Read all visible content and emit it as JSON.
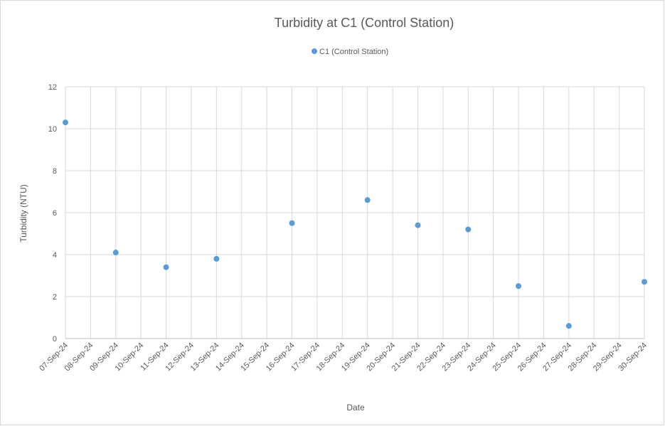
{
  "chart_data": {
    "type": "scatter",
    "title": "Turbidity at C1 (Control Station)",
    "xlabel": "Date",
    "ylabel": "Turbidity (NTU)",
    "series": [
      {
        "name": "C1 (Control Station)",
        "color": "#5b9bd5",
        "x": [
          "2024-09-07",
          "2024-09-09",
          "2024-09-11",
          "2024-09-13",
          "2024-09-16",
          "2024-09-19",
          "2024-09-21",
          "2024-09-23",
          "2024-09-25",
          "2024-09-27",
          "2024-09-30"
        ],
        "values": [
          10.3,
          4.1,
          3.4,
          3.8,
          5.5,
          6.6,
          5.4,
          5.2,
          2.5,
          0.6,
          2.7
        ]
      }
    ],
    "xlim": [
      "2024-09-07",
      "2024-09-30"
    ],
    "xticks": [
      {
        "value": "2024-09-07",
        "label": "07-Sep-24"
      },
      {
        "value": "2024-09-08",
        "label": "08-Sep-24"
      },
      {
        "value": "2024-09-09",
        "label": "09-Sep-24"
      },
      {
        "value": "2024-09-10",
        "label": "10-Sep-24"
      },
      {
        "value": "2024-09-11",
        "label": "11-Sep-24"
      },
      {
        "value": "2024-09-12",
        "label": "12-Sep-24"
      },
      {
        "value": "2024-09-13",
        "label": "13-Sep-24"
      },
      {
        "value": "2024-09-14",
        "label": "14-Sep-24"
      },
      {
        "value": "2024-09-15",
        "label": "15-Sep-24"
      },
      {
        "value": "2024-09-16",
        "label": "16-Sep-24"
      },
      {
        "value": "2024-09-17",
        "label": "17-Sep-24"
      },
      {
        "value": "2024-09-18",
        "label": "18-Sep-24"
      },
      {
        "value": "2024-09-19",
        "label": "19-Sep-24"
      },
      {
        "value": "2024-09-20",
        "label": "20-Sep-24"
      },
      {
        "value": "2024-09-21",
        "label": "21-Sep-24"
      },
      {
        "value": "2024-09-22",
        "label": "22-Sep-24"
      },
      {
        "value": "2024-09-23",
        "label": "23-Sep-24"
      },
      {
        "value": "2024-09-24",
        "label": "24-Sep-24"
      },
      {
        "value": "2024-09-25",
        "label": "25-Sep-24"
      },
      {
        "value": "2024-09-26",
        "label": "26-Sep-24"
      },
      {
        "value": "2024-09-27",
        "label": "27-Sep-24"
      },
      {
        "value": "2024-09-28",
        "label": "28-Sep-24"
      },
      {
        "value": "2024-09-29",
        "label": "29-Sep-24"
      },
      {
        "value": "2024-09-30",
        "label": "30-Sep-24"
      }
    ],
    "ylim": [
      0,
      12
    ],
    "yticks": [
      0,
      2,
      4,
      6,
      8,
      10,
      12
    ],
    "grid": true,
    "legend": "top"
  }
}
